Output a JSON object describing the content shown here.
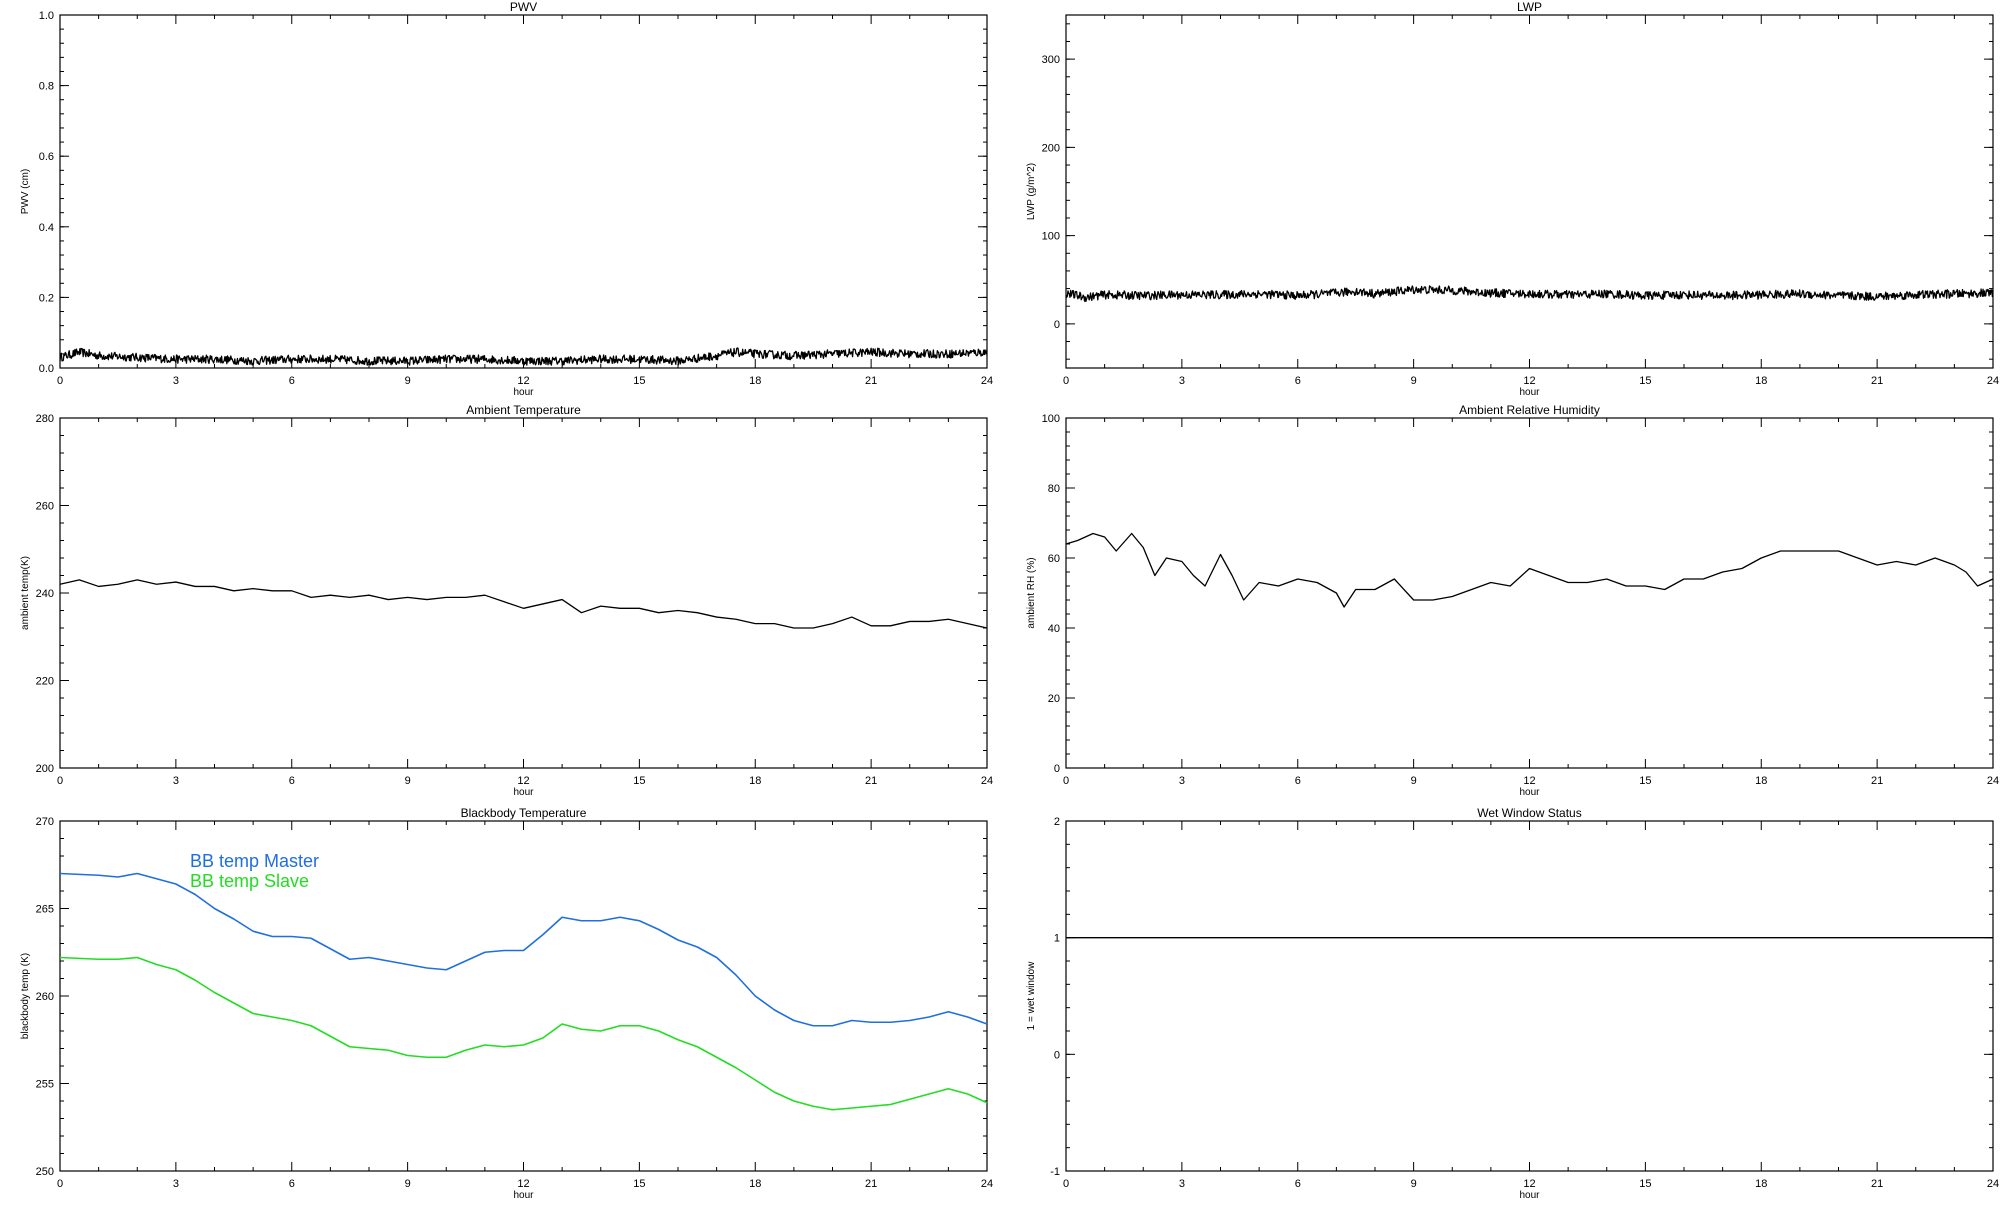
{
  "chart_data": [
    {
      "type": "line",
      "title": "PWV",
      "xlabel": "hour",
      "ylabel": "PWV (cm)",
      "xlim": [
        0,
        24
      ],
      "ylim": [
        0.0,
        1.0
      ],
      "x_ticks": [
        "0",
        "3",
        "6",
        "9",
        "12",
        "15",
        "18",
        "21",
        "24"
      ],
      "y_ticks": [
        "0.0",
        "0.2",
        "0.4",
        "0.6",
        "0.8",
        "1.0"
      ],
      "series": [
        {
          "color": "#000000",
          "noisy": true,
          "x": [
            0,
            0.5,
            1,
            2,
            3,
            4,
            5,
            6,
            7,
            8,
            9,
            10,
            11,
            12,
            13,
            14,
            15,
            16,
            17,
            17.5,
            18,
            19,
            20,
            21,
            22,
            23,
            24
          ],
          "values": [
            0.03,
            0.045,
            0.035,
            0.03,
            0.025,
            0.025,
            0.02,
            0.025,
            0.025,
            0.02,
            0.02,
            0.025,
            0.025,
            0.02,
            0.02,
            0.025,
            0.025,
            0.02,
            0.035,
            0.045,
            0.04,
            0.035,
            0.04,
            0.045,
            0.04,
            0.04,
            0.045
          ]
        }
      ]
    },
    {
      "type": "line",
      "title": "LWP",
      "xlabel": "hour",
      "ylabel": "LWP (g/m^2)",
      "xlim": [
        0,
        24
      ],
      "ylim": [
        -50,
        350
      ],
      "x_ticks": [
        "0",
        "3",
        "6",
        "9",
        "12",
        "15",
        "18",
        "21",
        "24"
      ],
      "y_ticks": [
        "0",
        "100",
        "200",
        "300"
      ],
      "series": [
        {
          "color": "#000000",
          "noisy": true,
          "x": [
            0,
            0.5,
            1,
            2,
            3,
            4,
            5,
            6,
            7,
            7.5,
            8,
            9,
            10,
            11,
            12,
            13,
            14,
            15,
            16,
            17,
            18,
            19,
            20,
            21,
            22,
            23,
            24
          ],
          "values": [
            35,
            30,
            33,
            32,
            33,
            33,
            34,
            32,
            35,
            37,
            34,
            39,
            38,
            35,
            34,
            33,
            34,
            32,
            33,
            32,
            33,
            34,
            32,
            31,
            33,
            34,
            35
          ]
        }
      ]
    },
    {
      "type": "line",
      "title": "Ambient Temperature",
      "xlabel": "hour",
      "ylabel": "ambient temp(K)",
      "xlim": [
        0,
        24
      ],
      "ylim": [
        200,
        280
      ],
      "x_ticks": [
        "0",
        "3",
        "6",
        "9",
        "12",
        "15",
        "18",
        "21",
        "24"
      ],
      "y_ticks": [
        "200",
        "220",
        "240",
        "260",
        "280"
      ],
      "series": [
        {
          "color": "#000000",
          "noisy": false,
          "x": [
            0,
            0.5,
            1,
            1.5,
            2,
            2.5,
            3,
            3.5,
            4,
            4.5,
            5,
            5.5,
            6,
            6.5,
            7,
            7.5,
            8,
            8.5,
            9,
            9.5,
            10,
            10.5,
            11,
            11.5,
            12,
            12.5,
            13,
            13.5,
            14,
            14.5,
            15,
            15.5,
            16,
            16.5,
            17,
            17.5,
            18,
            18.5,
            19,
            19.5,
            20,
            20.5,
            21,
            21.5,
            22,
            22.5,
            23,
            23.5,
            24
          ],
          "values": [
            242,
            243,
            241.5,
            242,
            243,
            242,
            242.5,
            241.5,
            241.5,
            240.5,
            241,
            240.5,
            240.5,
            239,
            239.5,
            239,
            239.5,
            238.5,
            239,
            238.5,
            239,
            239,
            239.5,
            238,
            236.5,
            237.5,
            238.5,
            235.5,
            237,
            236.5,
            236.5,
            235.5,
            236,
            235.5,
            234.5,
            234,
            233,
            233,
            232,
            232,
            233,
            234.5,
            232.5,
            232.5,
            233.5,
            233.5,
            234,
            233,
            232
          ]
        }
      ]
    },
    {
      "type": "line",
      "title": "Ambient Relative Humidity",
      "xlabel": "hour",
      "ylabel": "ambient RH (%)",
      "xlim": [
        0,
        24
      ],
      "ylim": [
        0,
        100
      ],
      "x_ticks": [
        "0",
        "3",
        "6",
        "9",
        "12",
        "15",
        "18",
        "21",
        "24"
      ],
      "y_ticks": [
        "0",
        "20",
        "40",
        "60",
        "80",
        "100"
      ],
      "series": [
        {
          "color": "#000000",
          "noisy": false,
          "x": [
            0,
            0.3,
            0.7,
            1,
            1.3,
            1.7,
            2,
            2.3,
            2.6,
            3,
            3.3,
            3.6,
            4,
            4.3,
            4.6,
            5,
            5.5,
            6,
            6.5,
            7,
            7.2,
            7.5,
            8,
            8.5,
            9,
            9.5,
            10,
            10.5,
            11,
            11.5,
            12,
            12.5,
            13,
            13.5,
            14,
            14.5,
            15,
            15.5,
            16,
            16.5,
            17,
            17.5,
            18,
            18.5,
            19,
            19.5,
            20,
            20.5,
            21,
            21.5,
            22,
            22.5,
            23,
            23.3,
            23.6,
            24
          ],
          "values": [
            64,
            65,
            67,
            66,
            62,
            67,
            63,
            55,
            60,
            59,
            55,
            52,
            61,
            55,
            48,
            53,
            52,
            54,
            53,
            50,
            46,
            51,
            51,
            54,
            48,
            48,
            49,
            51,
            53,
            52,
            57,
            55,
            53,
            53,
            54,
            52,
            52,
            51,
            54,
            54,
            56,
            57,
            60,
            62,
            62,
            62,
            62,
            60,
            58,
            59,
            58,
            60,
            58,
            56,
            52,
            54
          ]
        }
      ]
    },
    {
      "type": "line",
      "title": "Blackbody Temperature",
      "xlabel": "hour",
      "ylabel": "blackbody temp (K)",
      "xlim": [
        0,
        24
      ],
      "ylim": [
        250,
        270
      ],
      "x_ticks": [
        "0",
        "3",
        "6",
        "9",
        "12",
        "15",
        "18",
        "21",
        "24"
      ],
      "y_ticks": [
        "250",
        "255",
        "260",
        "265",
        "270"
      ],
      "legend": [
        "BB temp Master",
        "BB temp Slave"
      ],
      "series": [
        {
          "name": "BB temp Master",
          "color": "#1f6fe0",
          "noisy": false,
          "x": [
            0,
            1,
            1.5,
            2,
            2.5,
            3,
            3.5,
            4,
            4.5,
            5,
            5.5,
            6,
            6.5,
            7,
            7.5,
            8,
            8.5,
            9,
            9.5,
            10,
            10.5,
            11,
            11.5,
            12,
            12.5,
            13,
            13.5,
            14,
            14.5,
            15,
            15.5,
            16,
            16.5,
            17,
            17.5,
            18,
            18.5,
            19,
            19.5,
            20,
            20.5,
            21,
            21.5,
            22,
            22.5,
            23,
            23.5,
            24
          ],
          "values": [
            267,
            266.9,
            266.8,
            267,
            266.7,
            266.4,
            265.8,
            265,
            264.4,
            263.7,
            263.4,
            263.4,
            263.3,
            262.7,
            262.1,
            262.2,
            262,
            261.8,
            261.6,
            261.5,
            262,
            262.5,
            262.6,
            262.6,
            263.5,
            264.5,
            264.3,
            264.3,
            264.5,
            264.3,
            263.8,
            263.2,
            262.8,
            262.2,
            261.2,
            260,
            259.2,
            258.6,
            258.3,
            258.3,
            258.6,
            258.5,
            258.5,
            258.6,
            258.8,
            259.1,
            258.8,
            258.4
          ]
        },
        {
          "name": "BB temp Slave",
          "color": "#22dd22",
          "noisy": false,
          "x": [
            0,
            1,
            1.5,
            2,
            2.5,
            3,
            3.5,
            4,
            4.5,
            5,
            5.5,
            6,
            6.5,
            7,
            7.5,
            8,
            8.5,
            9,
            9.5,
            10,
            10.5,
            11,
            11.5,
            12,
            12.5,
            13,
            13.5,
            14,
            14.5,
            15,
            15.5,
            16,
            16.5,
            17,
            17.5,
            18,
            18.5,
            19,
            19.5,
            20,
            20.5,
            21,
            21.5,
            22,
            22.5,
            23,
            23.5,
            24
          ],
          "values": [
            262.2,
            262.1,
            262.1,
            262.2,
            261.8,
            261.5,
            260.9,
            260.2,
            259.6,
            259,
            258.8,
            258.6,
            258.3,
            257.7,
            257.1,
            257,
            256.9,
            256.6,
            256.5,
            256.5,
            256.9,
            257.2,
            257.1,
            257.2,
            257.6,
            258.4,
            258.1,
            258,
            258.3,
            258.3,
            258,
            257.5,
            257.1,
            256.5,
            255.9,
            255.2,
            254.5,
            254,
            253.7,
            253.5,
            253.6,
            253.7,
            253.8,
            254.1,
            254.4,
            254.7,
            254.4,
            253.9
          ]
        }
      ]
    },
    {
      "type": "line",
      "title": "Wet Window Status",
      "xlabel": "hour",
      "ylabel": "1 = wet window",
      "xlim": [
        0,
        24
      ],
      "ylim": [
        -1,
        2
      ],
      "x_ticks": [
        "0",
        "3",
        "6",
        "9",
        "12",
        "15",
        "18",
        "21",
        "24"
      ],
      "y_ticks": [
        "-1",
        "0",
        "1",
        "2"
      ],
      "series": [
        {
          "color": "#000000",
          "noisy": false,
          "x": [
            0,
            24
          ],
          "values": [
            1,
            1
          ]
        }
      ]
    }
  ]
}
